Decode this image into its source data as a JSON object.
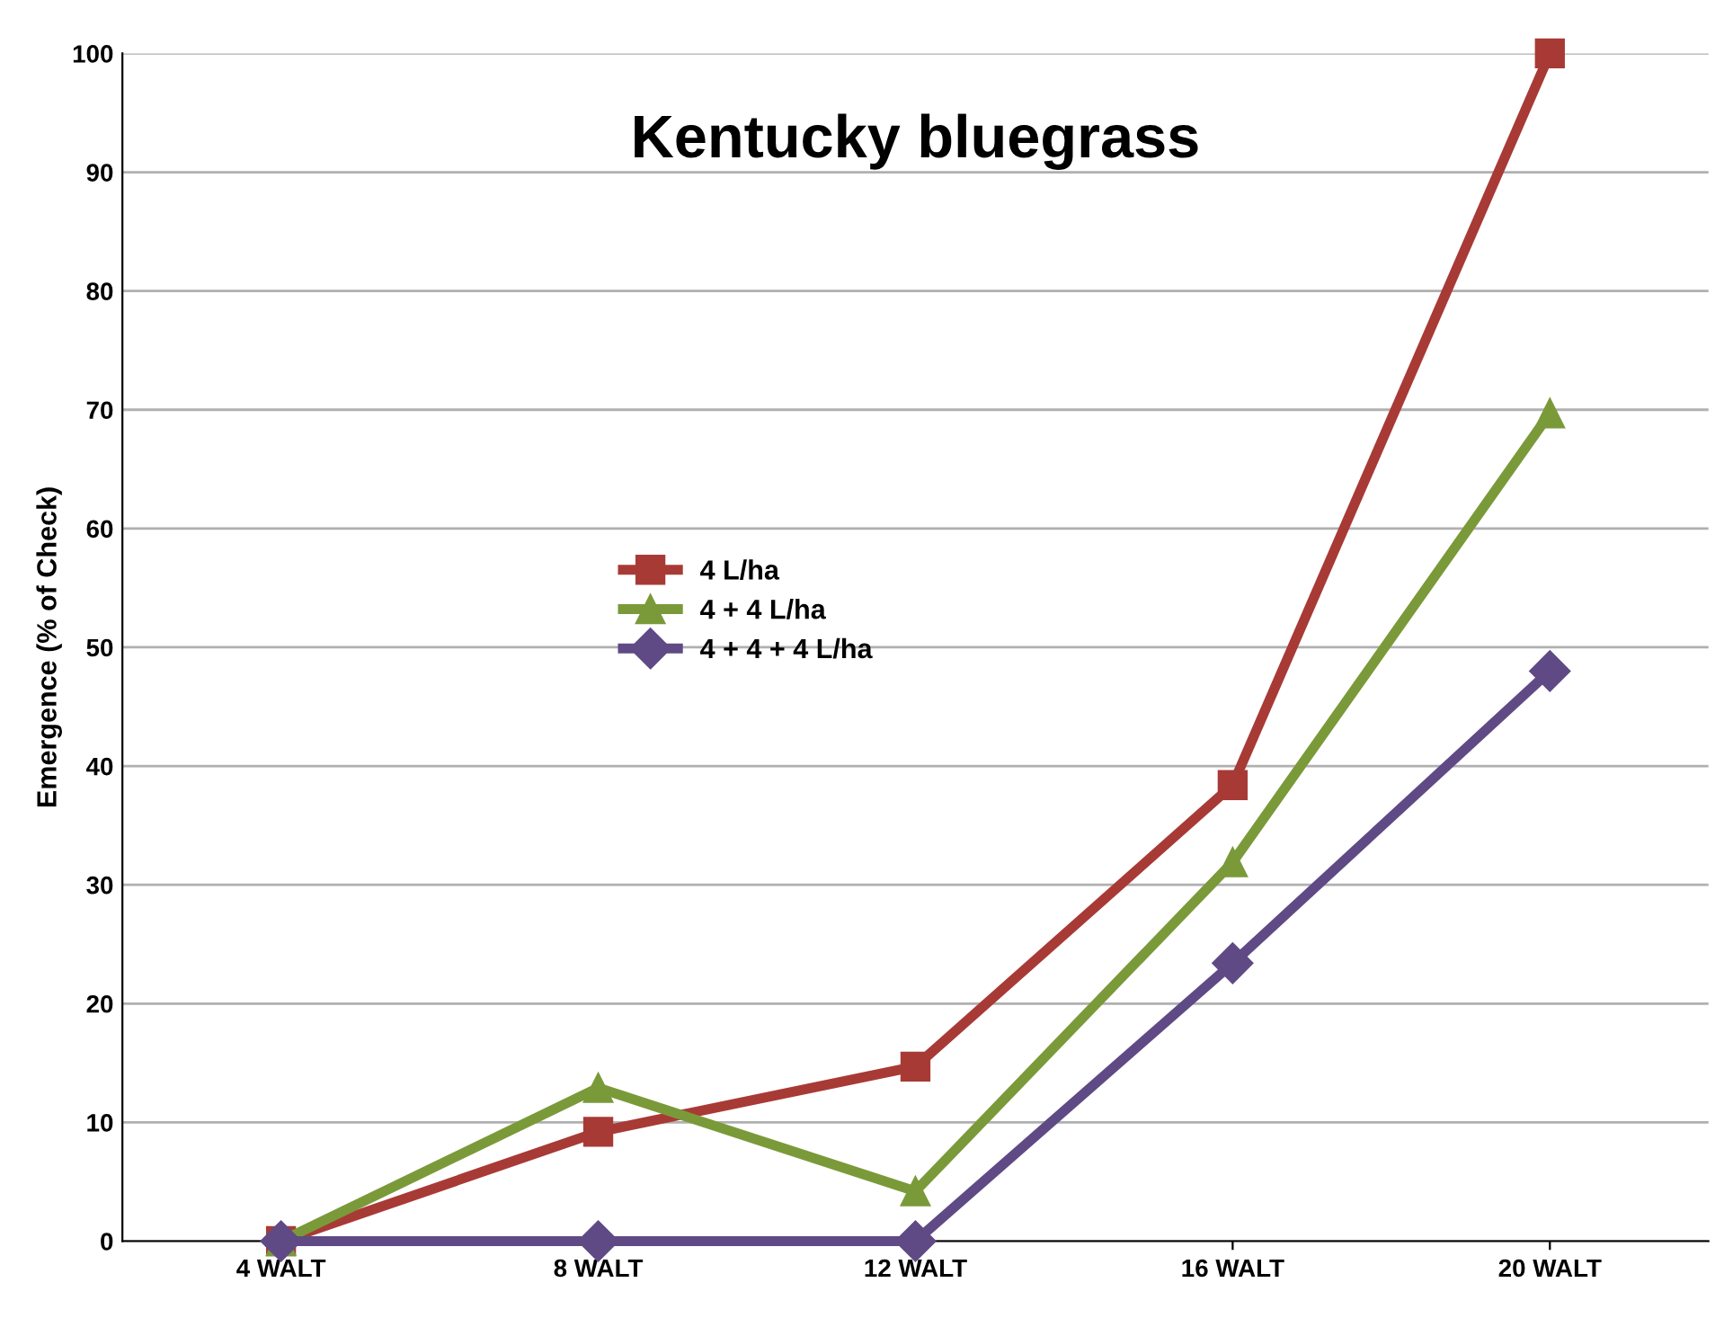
{
  "chart_data": {
    "type": "line",
    "title": "Kentucky bluegrass",
    "ylabel": "Emergence (% of Check)",
    "categories": [
      "4 WALT",
      "8 WALT",
      "12 WALT",
      "16 WALT",
      "20 WALT"
    ],
    "series": [
      {
        "name": "4 L/ha",
        "color": "#a83a36",
        "marker": "square",
        "values": [
          0,
          9.2,
          14.7,
          38.4,
          100
        ]
      },
      {
        "name": "4 + 4 L/ha",
        "color": "#7a9a3a",
        "marker": "triangle",
        "values": [
          0,
          12.9,
          4.2,
          31.9,
          69.7
        ]
      },
      {
        "name": "4 + 4 + 4 L/ha",
        "color": "#5f4a85",
        "marker": "diamond",
        "values": [
          0,
          0,
          0,
          23.4,
          48
        ]
      }
    ],
    "ylim": [
      0,
      100
    ],
    "yticks": [
      0,
      10,
      20,
      30,
      40,
      50,
      60,
      70,
      80,
      90,
      100
    ],
    "grid": "y",
    "legend": "center left",
    "line_style": "solid"
  }
}
